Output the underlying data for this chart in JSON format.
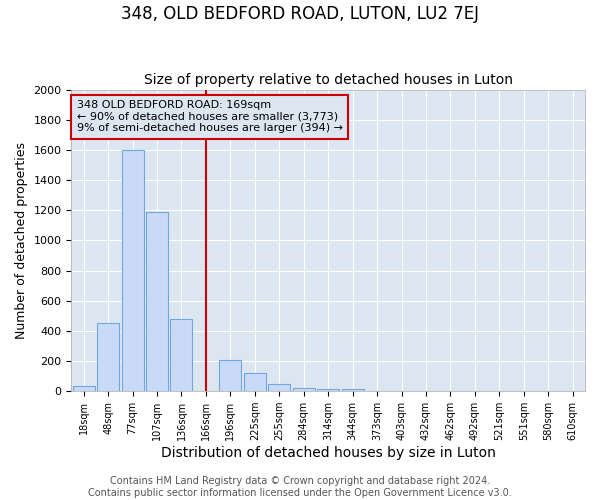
{
  "title": "348, OLD BEDFORD ROAD, LUTON, LU2 7EJ",
  "subtitle": "Size of property relative to detached houses in Luton",
  "xlabel": "Distribution of detached houses by size in Luton",
  "ylabel": "Number of detached properties",
  "categories": [
    "18sqm",
    "48sqm",
    "77sqm",
    "107sqm",
    "136sqm",
    "166sqm",
    "196sqm",
    "225sqm",
    "255sqm",
    "284sqm",
    "314sqm",
    "344sqm",
    "373sqm",
    "403sqm",
    "432sqm",
    "462sqm",
    "492sqm",
    "521sqm",
    "551sqm",
    "580sqm",
    "610sqm"
  ],
  "values": [
    35,
    450,
    1600,
    1190,
    480,
    0,
    210,
    120,
    50,
    20,
    15,
    15,
    0,
    0,
    0,
    0,
    0,
    0,
    0,
    0,
    0
  ],
  "bar_color": "#c9daf8",
  "bar_edgecolor": "#6fa8dc",
  "vline_x": 5,
  "vline_color": "#cc0000",
  "annotation_text": "348 OLD BEDFORD ROAD: 169sqm\n← 90% of detached houses are smaller (3,773)\n9% of semi-detached houses are larger (394) →",
  "annotation_box_edgecolor": "#cc0000",
  "ylim": [
    0,
    2000
  ],
  "yticks": [
    0,
    200,
    400,
    600,
    800,
    1000,
    1200,
    1400,
    1600,
    1800,
    2000
  ],
  "background_color": "#ffffff",
  "plot_bg_color": "#dce6f1",
  "footer": "Contains HM Land Registry data © Crown copyright and database right 2024.\nContains public sector information licensed under the Open Government Licence v3.0.",
  "title_fontsize": 12,
  "subtitle_fontsize": 10,
  "xlabel_fontsize": 10,
  "ylabel_fontsize": 9,
  "footer_fontsize": 7
}
